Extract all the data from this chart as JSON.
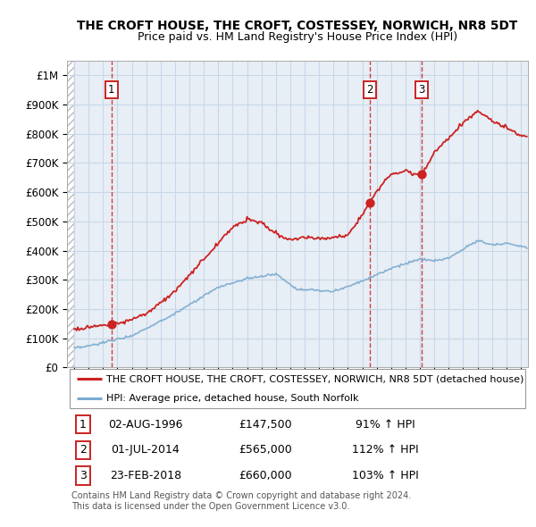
{
  "title": "THE CROFT HOUSE, THE CROFT, COSTESSEY, NORWICH, NR8 5DT",
  "subtitle": "Price paid vs. HM Land Registry's House Price Index (HPI)",
  "hpi_label": "HPI: Average price, detached house, South Norfolk",
  "property_label": "THE CROFT HOUSE, THE CROFT, COSTESSEY, NORWICH, NR8 5DT (detached house)",
  "copyright": "Contains HM Land Registry data © Crown copyright and database right 2024.\nThis data is licensed under the Open Government Licence v3.0.",
  "sales": [
    {
      "num": 1,
      "date": "02-AUG-1996",
      "price": 147500,
      "pct": "91%",
      "dir": "↑"
    },
    {
      "num": 2,
      "date": "01-JUL-2014",
      "price": 565000,
      "pct": "112%",
      "dir": "↑"
    },
    {
      "num": 3,
      "date": "23-FEB-2018",
      "price": 660000,
      "pct": "103%",
      "dir": "↑"
    }
  ],
  "sale_years": [
    1996.585,
    2014.5,
    2018.14
  ],
  "sale_prices": [
    147500,
    565000,
    660000
  ],
  "hpi_color": "#7aaad0",
  "property_color": "#cc2222",
  "dashed_color": "#cc2222",
  "ylim": [
    0,
    1050000
  ],
  "xlim_start": 1993.5,
  "xlim_end": 2025.5,
  "yticks": [
    0,
    100000,
    200000,
    300000,
    400000,
    500000,
    600000,
    700000,
    800000,
    900000,
    1000000
  ],
  "ytick_labels": [
    "£0",
    "£100K",
    "£200K",
    "£300K",
    "£400K",
    "£500K",
    "£600K",
    "£700K",
    "£800K",
    "£900K",
    "£1M"
  ],
  "grid_color": "#c8d8e8",
  "chart_bg": "#e8eef5",
  "hatch_bg": "#d8d8d8"
}
